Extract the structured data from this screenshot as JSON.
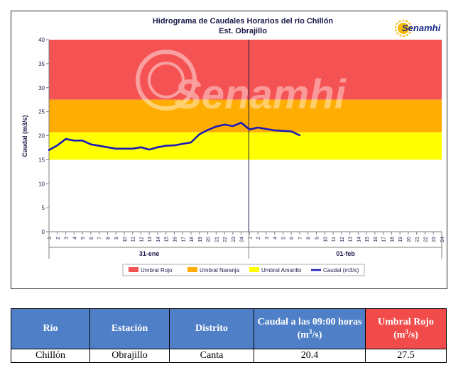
{
  "chart_data": {
    "type": "line",
    "title": "Hidrograma de Caudales Horarios del río Chillón",
    "subtitle": "Est. Obrajillo",
    "ylabel": "Caudal  (m3/s)",
    "ylim": [
      0,
      40
    ],
    "yticks": [
      0,
      5,
      10,
      15,
      20,
      25,
      30,
      35,
      40
    ],
    "xlim": [
      1,
      48
    ],
    "xtick_labels": [
      "1",
      "2",
      "3",
      "4",
      "5",
      "6",
      "7",
      "8",
      "9",
      "10",
      "11",
      "12",
      "13",
      "14",
      "15",
      "16",
      "17",
      "18",
      "19",
      "20",
      "21",
      "22",
      "23",
      "24",
      "1",
      "2",
      "3",
      "4",
      "5",
      "6",
      "7",
      "8",
      "9",
      "10",
      "11",
      "12",
      "13",
      "14",
      "15",
      "16",
      "17",
      "18",
      "19",
      "20",
      "21",
      "22",
      "23",
      "24"
    ],
    "day_labels": [
      "31-ene",
      "01-feb"
    ],
    "bands": [
      {
        "name": "Umbral Rojo",
        "from": 27.5,
        "to": 40,
        "color": "#f55353"
      },
      {
        "name": "Umbral Naranja",
        "from": 20.7,
        "to": 27.5,
        "color": "#ffad00"
      },
      {
        "name": "Umbral Amarillo",
        "from": 15,
        "to": 20.7,
        "color": "#ffff00"
      }
    ],
    "series": [
      {
        "name": "Caudal (m3/s)",
        "color": "#1a1ab8",
        "x": [
          1,
          2,
          3,
          4,
          5,
          6,
          7,
          8,
          9,
          10,
          11,
          12,
          13,
          14,
          15,
          16,
          17,
          18,
          19,
          20,
          21,
          22,
          23,
          24,
          25,
          26,
          27,
          28,
          29,
          30,
          31
        ],
        "values": [
          17.0,
          18.0,
          19.3,
          19.0,
          19.0,
          18.2,
          17.9,
          17.6,
          17.3,
          17.3,
          17.3,
          17.6,
          17.1,
          17.6,
          17.9,
          18.0,
          18.3,
          18.6,
          20.3,
          21.2,
          21.9,
          22.3,
          22.0,
          22.7,
          21.3,
          21.7,
          21.4,
          21.1,
          21.0,
          20.9,
          20.1
        ]
      }
    ],
    "legend_position": "bottom",
    "watermark": "Senamhi"
  },
  "logo_text": "Senamhi",
  "table": {
    "headers": [
      "Rio",
      "Estación",
      "Distrito",
      "Caudal a las 09:00 horas",
      "Umbral Rojo"
    ],
    "row": [
      "Chillón",
      "Obrajillo",
      "Canta",
      "20.4",
      "27.5"
    ]
  }
}
